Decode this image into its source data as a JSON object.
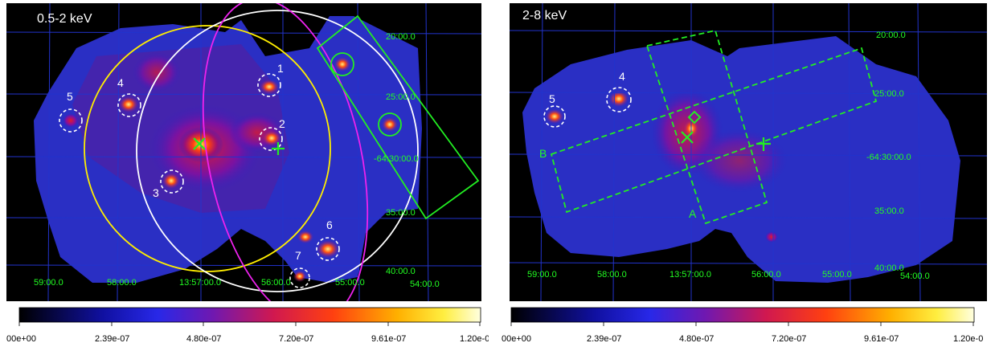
{
  "panels": [
    {
      "band": "0.5-2 keV",
      "dec_labels": [
        "20:00.0",
        "25:00.0",
        "-64:30:00.0",
        "35:00.0",
        "40:00.0"
      ],
      "ra_labels": [
        "59:00.0",
        "58:00.0",
        "13:57:00.0",
        "56:00.0",
        "55:00.0",
        "54:00.0"
      ],
      "sources": [
        "1",
        "2",
        "3",
        "4",
        "5",
        "6",
        "7"
      ]
    },
    {
      "band": "2-8 keV",
      "dec_labels": [
        "20:00.0",
        "25:00.0",
        "-64:30:00.0",
        "35:00.0",
        "40:00.0"
      ],
      "ra_labels": [
        "59:00.0",
        "58:00.0",
        "13:57:00.0",
        "56:00.0",
        "55:00.0",
        "54:00.0"
      ],
      "sources": [
        "4",
        "5"
      ],
      "box_labels": [
        "A",
        "B"
      ]
    }
  ],
  "colorbar": {
    "ticks": [
      "00e+00",
      "2.39e-07",
      "4.80e-07",
      "7.20e-07",
      "9.61e-07",
      "1.20e-0"
    ]
  },
  "colors": {
    "background": "#000000",
    "grid": "#2233cc",
    "coord_text": "#22ff22",
    "yellow_circle": "#ffee00",
    "magenta_ellipse": "#ee22ee",
    "white_circle": "#ffffff",
    "green_box": "#22ee22"
  }
}
